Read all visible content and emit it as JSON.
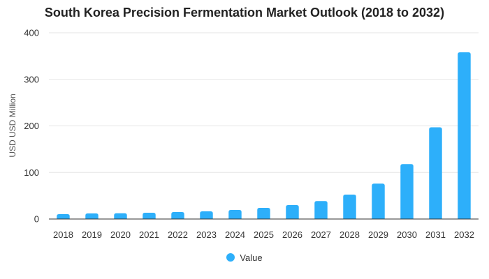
{
  "chart_data": {
    "type": "bar",
    "title": "South Korea Precision Fermentation Market Outlook (2018 to 2032)",
    "xlabel": "",
    "ylabel": "USD USD Million",
    "categories": [
      "2018",
      "2019",
      "2020",
      "2021",
      "2022",
      "2023",
      "2024",
      "2025",
      "2026",
      "2027",
      "2028",
      "2029",
      "2030",
      "2031",
      "2032"
    ],
    "series": [
      {
        "name": "Value",
        "values": [
          10.5,
          12,
          12.3,
          13.5,
          15,
          16.5,
          19.5,
          24,
          30,
          38.5,
          52.5,
          76,
          118,
          197,
          358
        ]
      }
    ],
    "ylim": [
      0,
      400
    ],
    "yticks": [
      0,
      100,
      200,
      300,
      400
    ],
    "grid": true,
    "legend": "bottom",
    "colors": {
      "bar": "#2DAFFA",
      "grid": "#E6E6E6",
      "axis": "#333333"
    }
  }
}
